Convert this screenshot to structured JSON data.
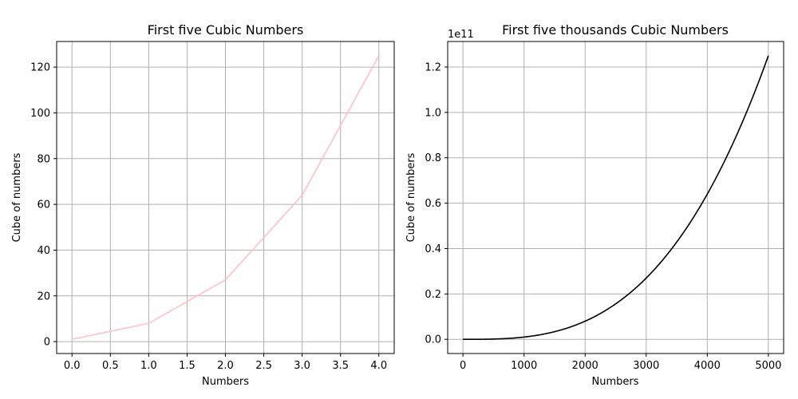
{
  "chart_data": [
    {
      "type": "line",
      "title": "First five Cubic Numbers",
      "xlabel": "Numbers",
      "ylabel": "Cube of numbers",
      "x": [
        0,
        1,
        2,
        3,
        4
      ],
      "series": [
        {
          "values": [
            1,
            8,
            27,
            64,
            125
          ],
          "color": "#ffc0cb"
        }
      ],
      "xlim": [
        -0.2,
        4.2
      ],
      "ylim": [
        -5.2,
        131.2
      ],
      "xticks": [
        0,
        0.5,
        1,
        1.5,
        2,
        2.5,
        3,
        3.5,
        4
      ],
      "xtick_labels": [
        "0.0",
        "0.5",
        "1.0",
        "1.5",
        "2.0",
        "2.5",
        "3.0",
        "3.5",
        "4.0"
      ],
      "yticks": [
        0,
        20,
        40,
        60,
        80,
        100,
        120
      ],
      "ytick_labels": [
        "0",
        "20",
        "40",
        "60",
        "80",
        "100",
        "120"
      ],
      "grid": true
    },
    {
      "type": "line",
      "title": "First five thousands Cubic Numbers",
      "xlabel": "Numbers",
      "ylabel": "Cube of numbers",
      "function": "cube",
      "x_range": [
        1,
        5000
      ],
      "series": [
        {
          "values": "y = x^3 for x = 1 … 5000",
          "color": "#000000"
        }
      ],
      "xlim": [
        -250,
        5250
      ],
      "ylim": [
        -6250000000.0,
        131250000000.0
      ],
      "xticks": [
        0,
        1000,
        2000,
        3000,
        4000,
        5000
      ],
      "xtick_labels": [
        "0",
        "1000",
        "2000",
        "3000",
        "4000",
        "5000"
      ],
      "yticks": [
        0,
        20000000000.0,
        40000000000.0,
        60000000000.0,
        80000000000.0,
        100000000000.0,
        120000000000.0
      ],
      "ytick_labels": [
        "0.0",
        "0.2",
        "0.4",
        "0.6",
        "0.8",
        "1.0",
        "1.2"
      ],
      "y_offset_label": "1e11",
      "grid": true
    }
  ]
}
